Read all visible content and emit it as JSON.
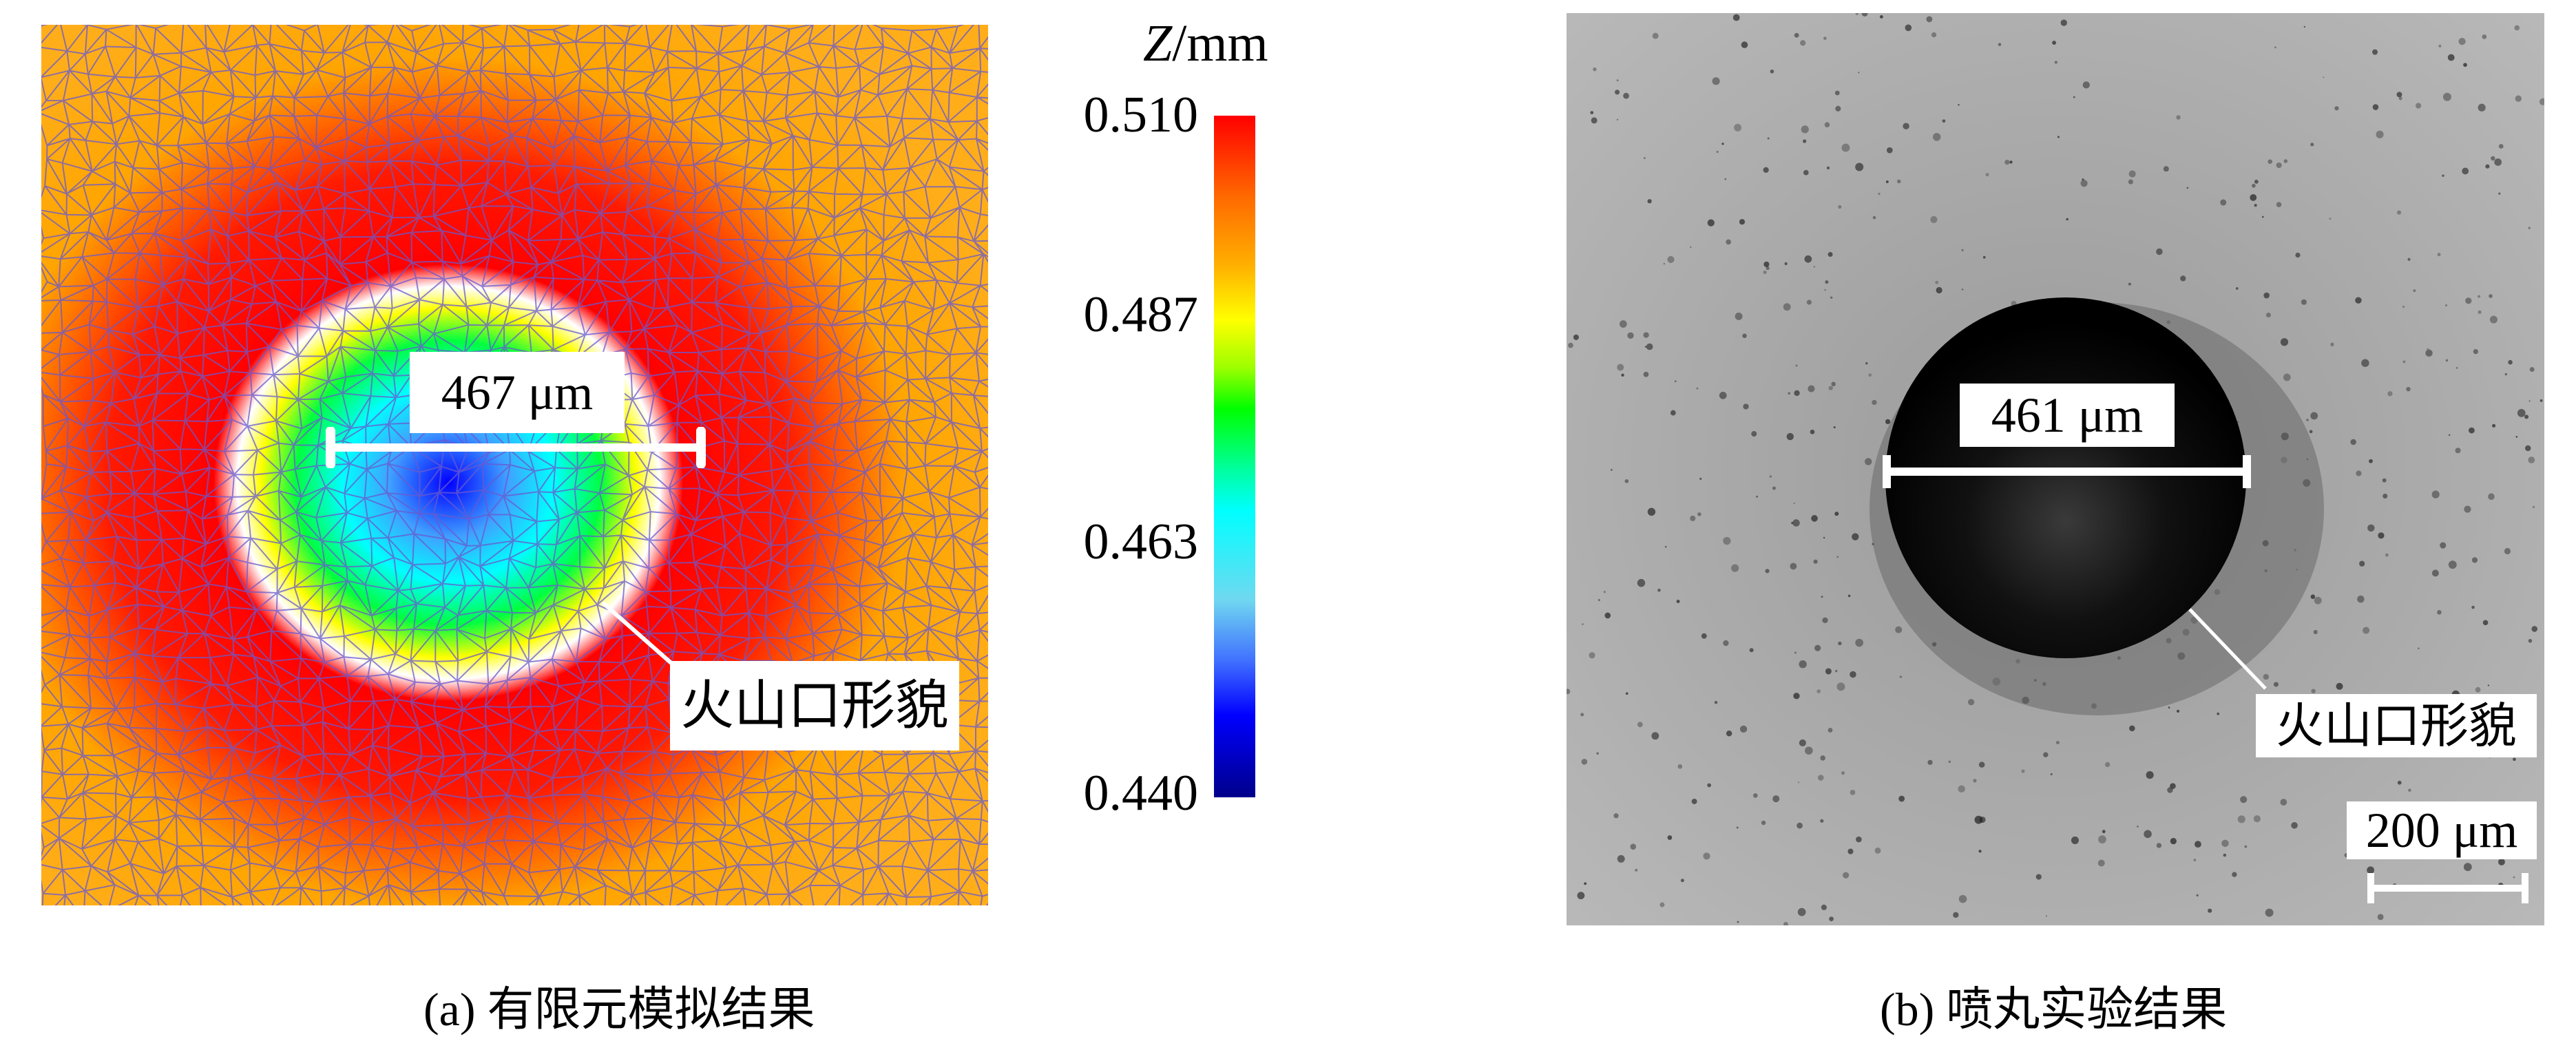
{
  "panel_a": {
    "measurement_label": "467 μm",
    "annotation_label": "火山口形貌",
    "caption": "(a) 有限元模拟结果"
  },
  "colorbar": {
    "title": "Z/mm",
    "ticks": [
      "0.510",
      "0.487",
      "0.463",
      "0.440"
    ],
    "range": [
      0.44,
      0.51
    ],
    "colors": [
      "#ff0000",
      "#ff8c00",
      "#ffff00",
      "#00ff00",
      "#00ffff",
      "#80c8ff",
      "#0000ff",
      "#00008b"
    ]
  },
  "panel_b": {
    "measurement_label": "461 μm",
    "annotation_label": "火山口形貌",
    "scale_bar_label": "200 μm",
    "caption": "(b) 喷丸实验结果"
  }
}
